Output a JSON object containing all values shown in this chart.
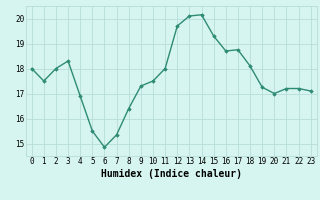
{
  "x": [
    0,
    1,
    2,
    3,
    4,
    5,
    6,
    7,
    8,
    9,
    10,
    11,
    12,
    13,
    14,
    15,
    16,
    17,
    18,
    19,
    20,
    21,
    22,
    23
  ],
  "y": [
    18.0,
    17.5,
    18.0,
    18.3,
    16.9,
    15.5,
    14.85,
    15.35,
    16.4,
    17.3,
    17.5,
    18.0,
    19.7,
    20.1,
    20.15,
    19.3,
    18.7,
    18.75,
    18.1,
    17.25,
    17.0,
    17.2,
    17.2,
    17.1
  ],
  "line_color": "#2e8b74",
  "marker": "D",
  "marker_size": 1.8,
  "bg_color": "#d6f5f0",
  "grid_color": "#b8ddd8",
  "xlabel": "Humidex (Indice chaleur)",
  "ylim": [
    14.5,
    20.5
  ],
  "xlim": [
    -0.5,
    23.5
  ],
  "yticks": [
    15,
    16,
    17,
    18,
    19,
    20
  ],
  "xticks": [
    0,
    1,
    2,
    3,
    4,
    5,
    6,
    7,
    8,
    9,
    10,
    11,
    12,
    13,
    14,
    15,
    16,
    17,
    18,
    19,
    20,
    21,
    22,
    23
  ],
  "tick_fontsize": 5.5,
  "xlabel_fontsize": 7.0,
  "line_width": 1.0
}
